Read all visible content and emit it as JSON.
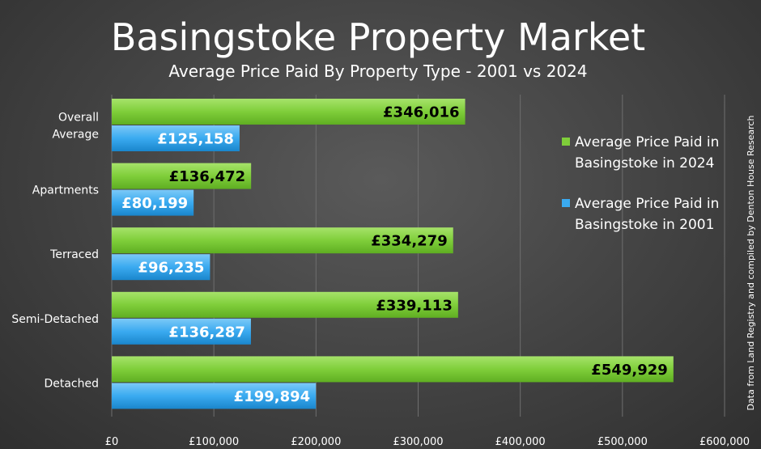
{
  "chart_data": {
    "type": "bar",
    "orientation": "horizontal",
    "title": "Basingstoke Property Market",
    "subtitle": "Average Price Paid By Property Type - 2001 vs 2024",
    "categories": [
      "Overall\nAverage",
      "Apartments",
      "Terraced",
      "Semi-Detached",
      "Detached"
    ],
    "series": [
      {
        "name": "Average Price Paid in Basingstoke in 2024",
        "values": [
          346016,
          136472,
          334279,
          339113,
          549929
        ],
        "labels": [
          "£346,016",
          "£136,472",
          "£334,279",
          "£339,113",
          "£549,929"
        ],
        "color": "#7fce3a"
      },
      {
        "name": "Average Price Paid in Basingstoke in 2001",
        "values": [
          125158,
          80199,
          96235,
          136287,
          199894
        ],
        "labels": [
          "£125,158",
          "£80,199",
          "£96,235",
          "£136,287",
          "£199,894"
        ],
        "color": "#3aaaf0"
      }
    ],
    "xlim": [
      0,
      600000
    ],
    "x_ticks": [
      0,
      100000,
      200000,
      300000,
      400000,
      500000,
      600000
    ],
    "x_tick_labels": [
      "£0",
      "£100,000",
      "£200,000",
      "£300,000",
      "£400,000",
      "£500,000",
      "£600,000"
    ],
    "grid": true,
    "legend_position": "right",
    "legend": [
      [
        "Average Price Paid in",
        "Basingstoke in 2024"
      ],
      [
        "Average Price Paid in",
        "Basingstoke in 2001"
      ]
    ],
    "source_note": "Data from Land Registry and compiled by Denton House Research"
  }
}
